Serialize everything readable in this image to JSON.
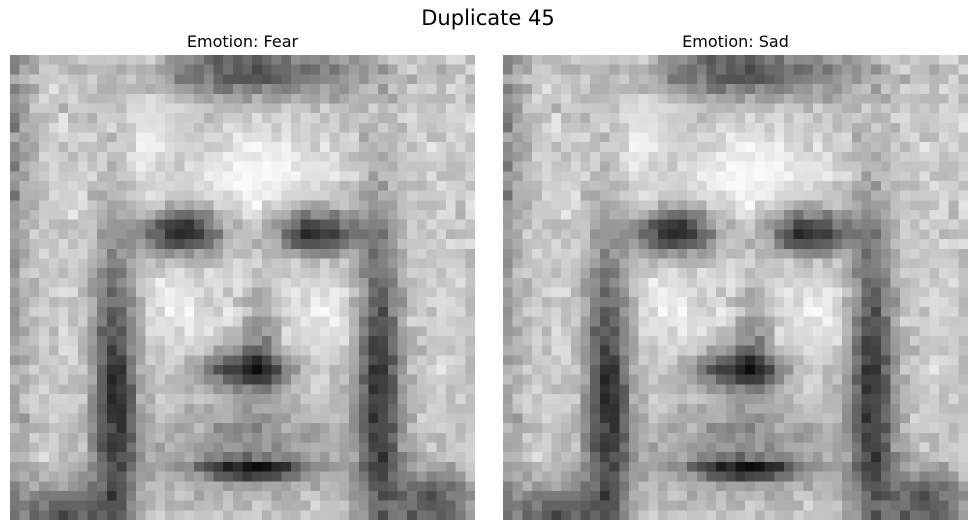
{
  "figure": {
    "title": "Duplicate 45"
  },
  "panels": [
    {
      "title": "Emotion: Fear",
      "image": "grayscale-face-photo"
    },
    {
      "title": "Emotion: Sad",
      "image": "grayscale-face-photo"
    }
  ]
}
